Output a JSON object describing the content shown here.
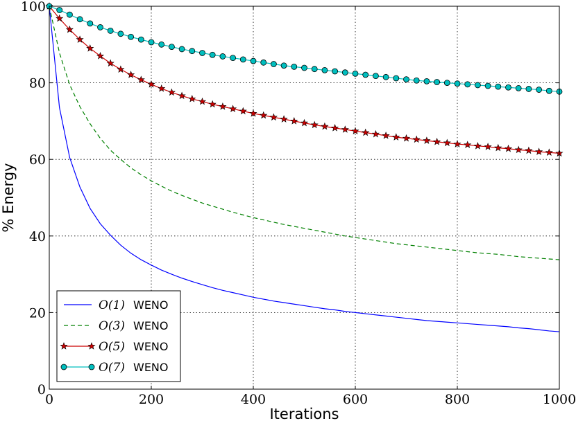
{
  "chart_data": {
    "type": "line",
    "title": "",
    "xlabel": "Iterations",
    "ylabel": "% Energy",
    "xlim": [
      0,
      1000
    ],
    "ylim": [
      0,
      100
    ],
    "xticks": [
      "0",
      "200",
      "400",
      "600",
      "800",
      "1000"
    ],
    "yticks": [
      "0",
      "20",
      "40",
      "60",
      "80",
      "100"
    ],
    "grid": true,
    "legend_position": "lower-left",
    "x": [
      0,
      20,
      40,
      60,
      80,
      100,
      120,
      140,
      160,
      180,
      200,
      220,
      240,
      260,
      280,
      300,
      320,
      340,
      360,
      380,
      400,
      420,
      440,
      460,
      480,
      500,
      520,
      540,
      560,
      580,
      600,
      620,
      640,
      660,
      680,
      700,
      720,
      740,
      760,
      780,
      800,
      820,
      840,
      860,
      880,
      900,
      920,
      940,
      960,
      980,
      1000
    ],
    "series": [
      {
        "name": "O(1)",
        "suffix": "WENO",
        "color": "#0000ff",
        "style": "solid",
        "marker": "none",
        "values": [
          100,
          73.5,
          60.5,
          52.8,
          47.2,
          43.2,
          40.2,
          37.6,
          35.5,
          33.8,
          32.4,
          31.1,
          30.0,
          29.0,
          28.1,
          27.3,
          26.5,
          25.8,
          25.2,
          24.6,
          24.0,
          23.5,
          23.0,
          22.6,
          22.2,
          21.8,
          21.4,
          21.0,
          20.7,
          20.3,
          20.0,
          19.7,
          19.4,
          19.1,
          18.8,
          18.5,
          18.2,
          17.9,
          17.7,
          17.5,
          17.3,
          17.1,
          16.9,
          16.7,
          16.5,
          16.3,
          16.0,
          15.8,
          15.5,
          15.2,
          15.0
        ]
      },
      {
        "name": "O(3)",
        "suffix": "WENO",
        "color": "#008000",
        "style": "dashed",
        "marker": "none",
        "values": [
          100,
          87.8,
          79.5,
          73.8,
          69.3,
          65.5,
          62.4,
          60.0,
          57.8,
          56.0,
          54.4,
          53.0,
          51.7,
          50.6,
          49.6,
          48.6,
          47.8,
          47.0,
          46.2,
          45.5,
          44.8,
          44.2,
          43.6,
          43.0,
          42.5,
          42.0,
          41.5,
          41.0,
          40.5,
          40.0,
          39.6,
          39.2,
          38.8,
          38.4,
          38.0,
          37.7,
          37.4,
          37.1,
          36.8,
          36.5,
          36.2,
          35.9,
          35.6,
          35.4,
          35.2,
          34.9,
          34.6,
          34.4,
          34.2,
          34.0,
          33.8
        ]
      },
      {
        "name": "O(5)",
        "suffix": "WENO",
        "color": "#cc0000",
        "style": "solid",
        "marker": "star",
        "values": [
          100,
          96.8,
          93.9,
          91.3,
          89.0,
          87.0,
          85.1,
          83.5,
          82.1,
          80.8,
          79.6,
          78.5,
          77.5,
          76.6,
          75.8,
          75.1,
          74.4,
          73.8,
          73.2,
          72.6,
          72.0,
          71.5,
          71.0,
          70.5,
          70.0,
          69.5,
          69.0,
          68.6,
          68.2,
          67.8,
          67.4,
          67.0,
          66.6,
          66.2,
          65.8,
          65.5,
          65.2,
          64.9,
          64.6,
          64.3,
          64.0,
          63.8,
          63.5,
          63.3,
          63.0,
          62.8,
          62.5,
          62.3,
          62.0,
          61.8,
          61.6
        ]
      },
      {
        "name": "O(7)",
        "suffix": "WENO",
        "color": "#00bfbf",
        "style": "solid",
        "marker": "circle",
        "values": [
          100,
          99.0,
          97.8,
          96.6,
          95.5,
          94.5,
          93.6,
          92.8,
          92.0,
          91.3,
          90.6,
          90.0,
          89.4,
          88.8,
          88.3,
          87.8,
          87.3,
          86.9,
          86.5,
          86.1,
          85.7,
          85.3,
          84.9,
          84.5,
          84.2,
          83.9,
          83.6,
          83.3,
          83.0,
          82.7,
          82.4,
          82.1,
          81.8,
          81.5,
          81.2,
          80.9,
          80.6,
          80.4,
          80.2,
          80.0,
          79.8,
          79.6,
          79.4,
          79.2,
          79.0,
          78.8,
          78.6,
          78.4,
          78.2,
          77.9,
          77.7
        ]
      }
    ]
  }
}
